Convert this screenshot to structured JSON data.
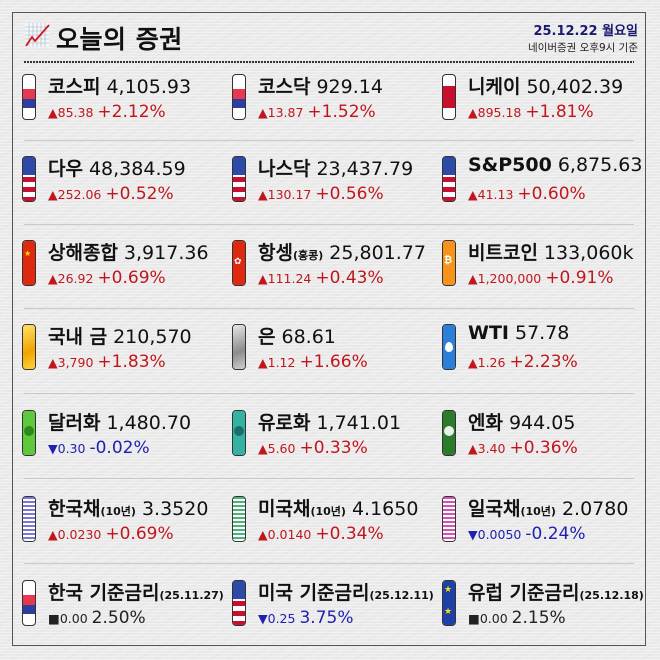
{
  "header": {
    "title": "오늘의 증권",
    "date": "25.12.22 월요일",
    "source": "네이버증권 오후9시 기준",
    "icon": "line-chart-icon"
  },
  "colors": {
    "up": "#c0161e",
    "down": "#1f22b0",
    "flat": "#222222",
    "date": "#1a1a6e"
  },
  "rows": [
    [
      {
        "name": "코스피",
        "suffix": "",
        "value": "4,105.93",
        "arrow": "▲",
        "abs": "85.38",
        "pct": "+2.12%",
        "dir": "up",
        "icon": "korea-flag-icon"
      },
      {
        "name": "코스닥",
        "suffix": "",
        "value": "929.14",
        "arrow": "▲",
        "abs": "13.87",
        "pct": "+1.52%",
        "dir": "up",
        "icon": "korea-flag-icon"
      },
      {
        "name": "니케이",
        "suffix": "",
        "value": "50,402.39",
        "arrow": "▲",
        "abs": "895.18",
        "pct": "+1.81%",
        "dir": "up",
        "icon": "japan-flag-icon"
      }
    ],
    [
      {
        "name": "다우",
        "suffix": "",
        "value": "48,384.59",
        "arrow": "▲",
        "abs": "252.06",
        "pct": "+0.52%",
        "dir": "up",
        "icon": "us-flag-icon"
      },
      {
        "name": "나스닥",
        "suffix": "",
        "value": "23,437.79",
        "arrow": "▲",
        "abs": "130.17",
        "pct": "+0.56%",
        "dir": "up",
        "icon": "us-flag-icon"
      },
      {
        "name": "S&P500",
        "suffix": "",
        "value": "6,875.63",
        "arrow": "▲",
        "abs": "41.13",
        "pct": "+0.60%",
        "dir": "up",
        "icon": "us-flag-icon"
      }
    ],
    [
      {
        "name": "상해종합",
        "suffix": "",
        "value": "3,917.36",
        "arrow": "▲",
        "abs": "26.92",
        "pct": "+0.69%",
        "dir": "up",
        "icon": "china-flag-icon"
      },
      {
        "name": "항셍",
        "suffix": "(홍콩)",
        "value": "25,801.77",
        "arrow": "▲",
        "abs": "111.24",
        "pct": "+0.43%",
        "dir": "up",
        "icon": "hongkong-flag-icon"
      },
      {
        "name": "비트코인",
        "suffix": "",
        "value": "133,060k",
        "arrow": "▲",
        "abs": "1,200,000",
        "pct": "+0.91%",
        "dir": "up",
        "icon": "bitcoin-icon"
      }
    ],
    [
      {
        "name": "국내 금",
        "suffix": "",
        "value": "210,570",
        "arrow": "▲",
        "abs": "3,790",
        "pct": "+1.83%",
        "dir": "up",
        "icon": "gold-bar-icon"
      },
      {
        "name": "은",
        "suffix": "",
        "value": "68.61",
        "arrow": "▲",
        "abs": "1.12",
        "pct": "+1.66%",
        "dir": "up",
        "icon": "silver-bar-icon"
      },
      {
        "name": "WTI",
        "suffix": "",
        "value": "57.78",
        "arrow": "▲",
        "abs": "1.26",
        "pct": "+2.23%",
        "dir": "up",
        "icon": "oil-drop-icon"
      }
    ],
    [
      {
        "name": "달러화",
        "suffix": "",
        "value": "1,480.70",
        "arrow": "▼",
        "abs": "0.30",
        "pct": "-0.02%",
        "dir": "down",
        "icon": "dollar-bill-icon"
      },
      {
        "name": "유로화",
        "suffix": "",
        "value": "1,741.01",
        "arrow": "▲",
        "abs": "5.60",
        "pct": "+0.33%",
        "dir": "up",
        "icon": "euro-bill-icon"
      },
      {
        "name": "엔화",
        "suffix": "",
        "value": "944.05",
        "arrow": "▲",
        "abs": "3.40",
        "pct": "+0.36%",
        "dir": "up",
        "icon": "yen-bill-icon"
      }
    ],
    [
      {
        "name": "한국채",
        "suffix": "(10년)",
        "value": "3.3520",
        "arrow": "▲",
        "abs": "0.0230",
        "pct": "+0.69%",
        "dir": "up",
        "icon": "korea-bond-icon"
      },
      {
        "name": "미국채",
        "suffix": "(10년)",
        "value": "4.1650",
        "arrow": "▲",
        "abs": "0.0140",
        "pct": "+0.34%",
        "dir": "up",
        "icon": "us-bond-icon"
      },
      {
        "name": "일국채",
        "suffix": "(10년)",
        "value": "2.0780",
        "arrow": "▼",
        "abs": "0.0050",
        "pct": "-0.24%",
        "dir": "down",
        "icon": "japan-bond-icon"
      }
    ],
    [
      {
        "name": "한국 기준금리",
        "suffix": "(25.11.27)",
        "value": "",
        "arrow": "■",
        "abs": "0.00",
        "pct": "2.50%",
        "dir": "flat",
        "icon": "korea-flag-icon"
      },
      {
        "name": "미국 기준금리",
        "suffix": "(25.12.11)",
        "value": "",
        "arrow": "▼",
        "abs": "0.25",
        "pct": "3.75%",
        "dir": "down",
        "icon": "us-flag-icon"
      },
      {
        "name": "유럽 기준금리",
        "suffix": "(25.12.18)",
        "value": "",
        "arrow": "■",
        "abs": "0.00",
        "pct": "2.15%",
        "dir": "flat",
        "icon": "eu-flag-icon"
      }
    ]
  ]
}
